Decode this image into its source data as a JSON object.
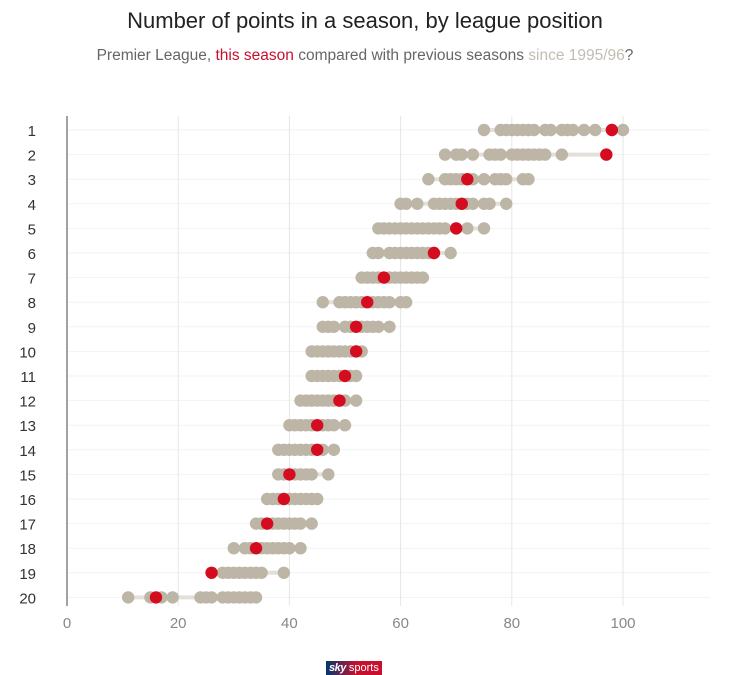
{
  "header": {
    "title": "Number of points in a season, by league position",
    "subtitle_pre": "Premier League, ",
    "subtitle_this": "this season",
    "subtitle_mid": " compared with previous seasons ",
    "subtitle_since": "since 1995/96",
    "subtitle_end": "?"
  },
  "colors": {
    "current": "#d50b20",
    "previous": "#bdb5a6",
    "axis": "#888888",
    "grid": "#e6e6e6",
    "label": "#333333",
    "since": "#c2bcb2"
  },
  "logo": {
    "sky": "sky",
    "sports": "sports"
  },
  "chart_data": {
    "type": "dot-plot",
    "title": "Number of points in a season, by league position",
    "subtitle": "Premier League, this season compared with previous seasons since 1995/96?",
    "xlabel": "",
    "ylabel": "",
    "xlim": [
      0,
      115
    ],
    "xticks": [
      0,
      20,
      40,
      60,
      80,
      100
    ],
    "categories": [
      "1",
      "2",
      "3",
      "4",
      "5",
      "6",
      "7",
      "8",
      "9",
      "10",
      "11",
      "12",
      "13",
      "14",
      "15",
      "16",
      "17",
      "18",
      "19",
      "20"
    ],
    "grid": "vertical",
    "current_season": [
      98,
      97,
      72,
      71,
      70,
      66,
      57,
      54,
      52,
      52,
      50,
      49,
      45,
      45,
      40,
      39,
      36,
      34,
      26,
      16
    ],
    "previous_seasons": [
      [
        75,
        78,
        79,
        80,
        81,
        82,
        83,
        84,
        86,
        87,
        89,
        90,
        91,
        93,
        95,
        100
      ],
      [
        68,
        70,
        71,
        73,
        76,
        77,
        78,
        80,
        81,
        82,
        83,
        84,
        85,
        86,
        89
      ],
      [
        65,
        68,
        69,
        70,
        71,
        73,
        75,
        77,
        78,
        79,
        82,
        83
      ],
      [
        60,
        61,
        63,
        66,
        67,
        68,
        69,
        70,
        71,
        72,
        73,
        75,
        76,
        79
      ],
      [
        56,
        57,
        58,
        59,
        60,
        61,
        62,
        63,
        64,
        65,
        66,
        67,
        68,
        70,
        72,
        75
      ],
      [
        55,
        56,
        58,
        59,
        60,
        61,
        62,
        63,
        64,
        65,
        66,
        69
      ],
      [
        53,
        54,
        55,
        56,
        58,
        59,
        60,
        61,
        62,
        63,
        64
      ],
      [
        46,
        49,
        50,
        51,
        52,
        53,
        55,
        56,
        57,
        58,
        60,
        61
      ],
      [
        46,
        47,
        48,
        50,
        51,
        53,
        54,
        55,
        56,
        58
      ],
      [
        44,
        45,
        46,
        47,
        48,
        49,
        50,
        51,
        52,
        53
      ],
      [
        44,
        45,
        46,
        47,
        48,
        49,
        51,
        52
      ],
      [
        42,
        43,
        44,
        45,
        46,
        47,
        48,
        50,
        52
      ],
      [
        40,
        41,
        42,
        43,
        44,
        46,
        47,
        48,
        50
      ],
      [
        38,
        39,
        40,
        41,
        42,
        43,
        44,
        46,
        48
      ],
      [
        38,
        39,
        41,
        42,
        43,
        44,
        47
      ],
      [
        36,
        37,
        38,
        40,
        41,
        42,
        43,
        44,
        45
      ],
      [
        34,
        35,
        37,
        38,
        39,
        40,
        41,
        42,
        44
      ],
      [
        30,
        32,
        33,
        35,
        36,
        37,
        38,
        39,
        40,
        42
      ],
      [
        28,
        29,
        30,
        31,
        32,
        33,
        34,
        35,
        39
      ],
      [
        11,
        15,
        17,
        19,
        24,
        25,
        26,
        28,
        29,
        30,
        31,
        32,
        33,
        34
      ]
    ]
  }
}
